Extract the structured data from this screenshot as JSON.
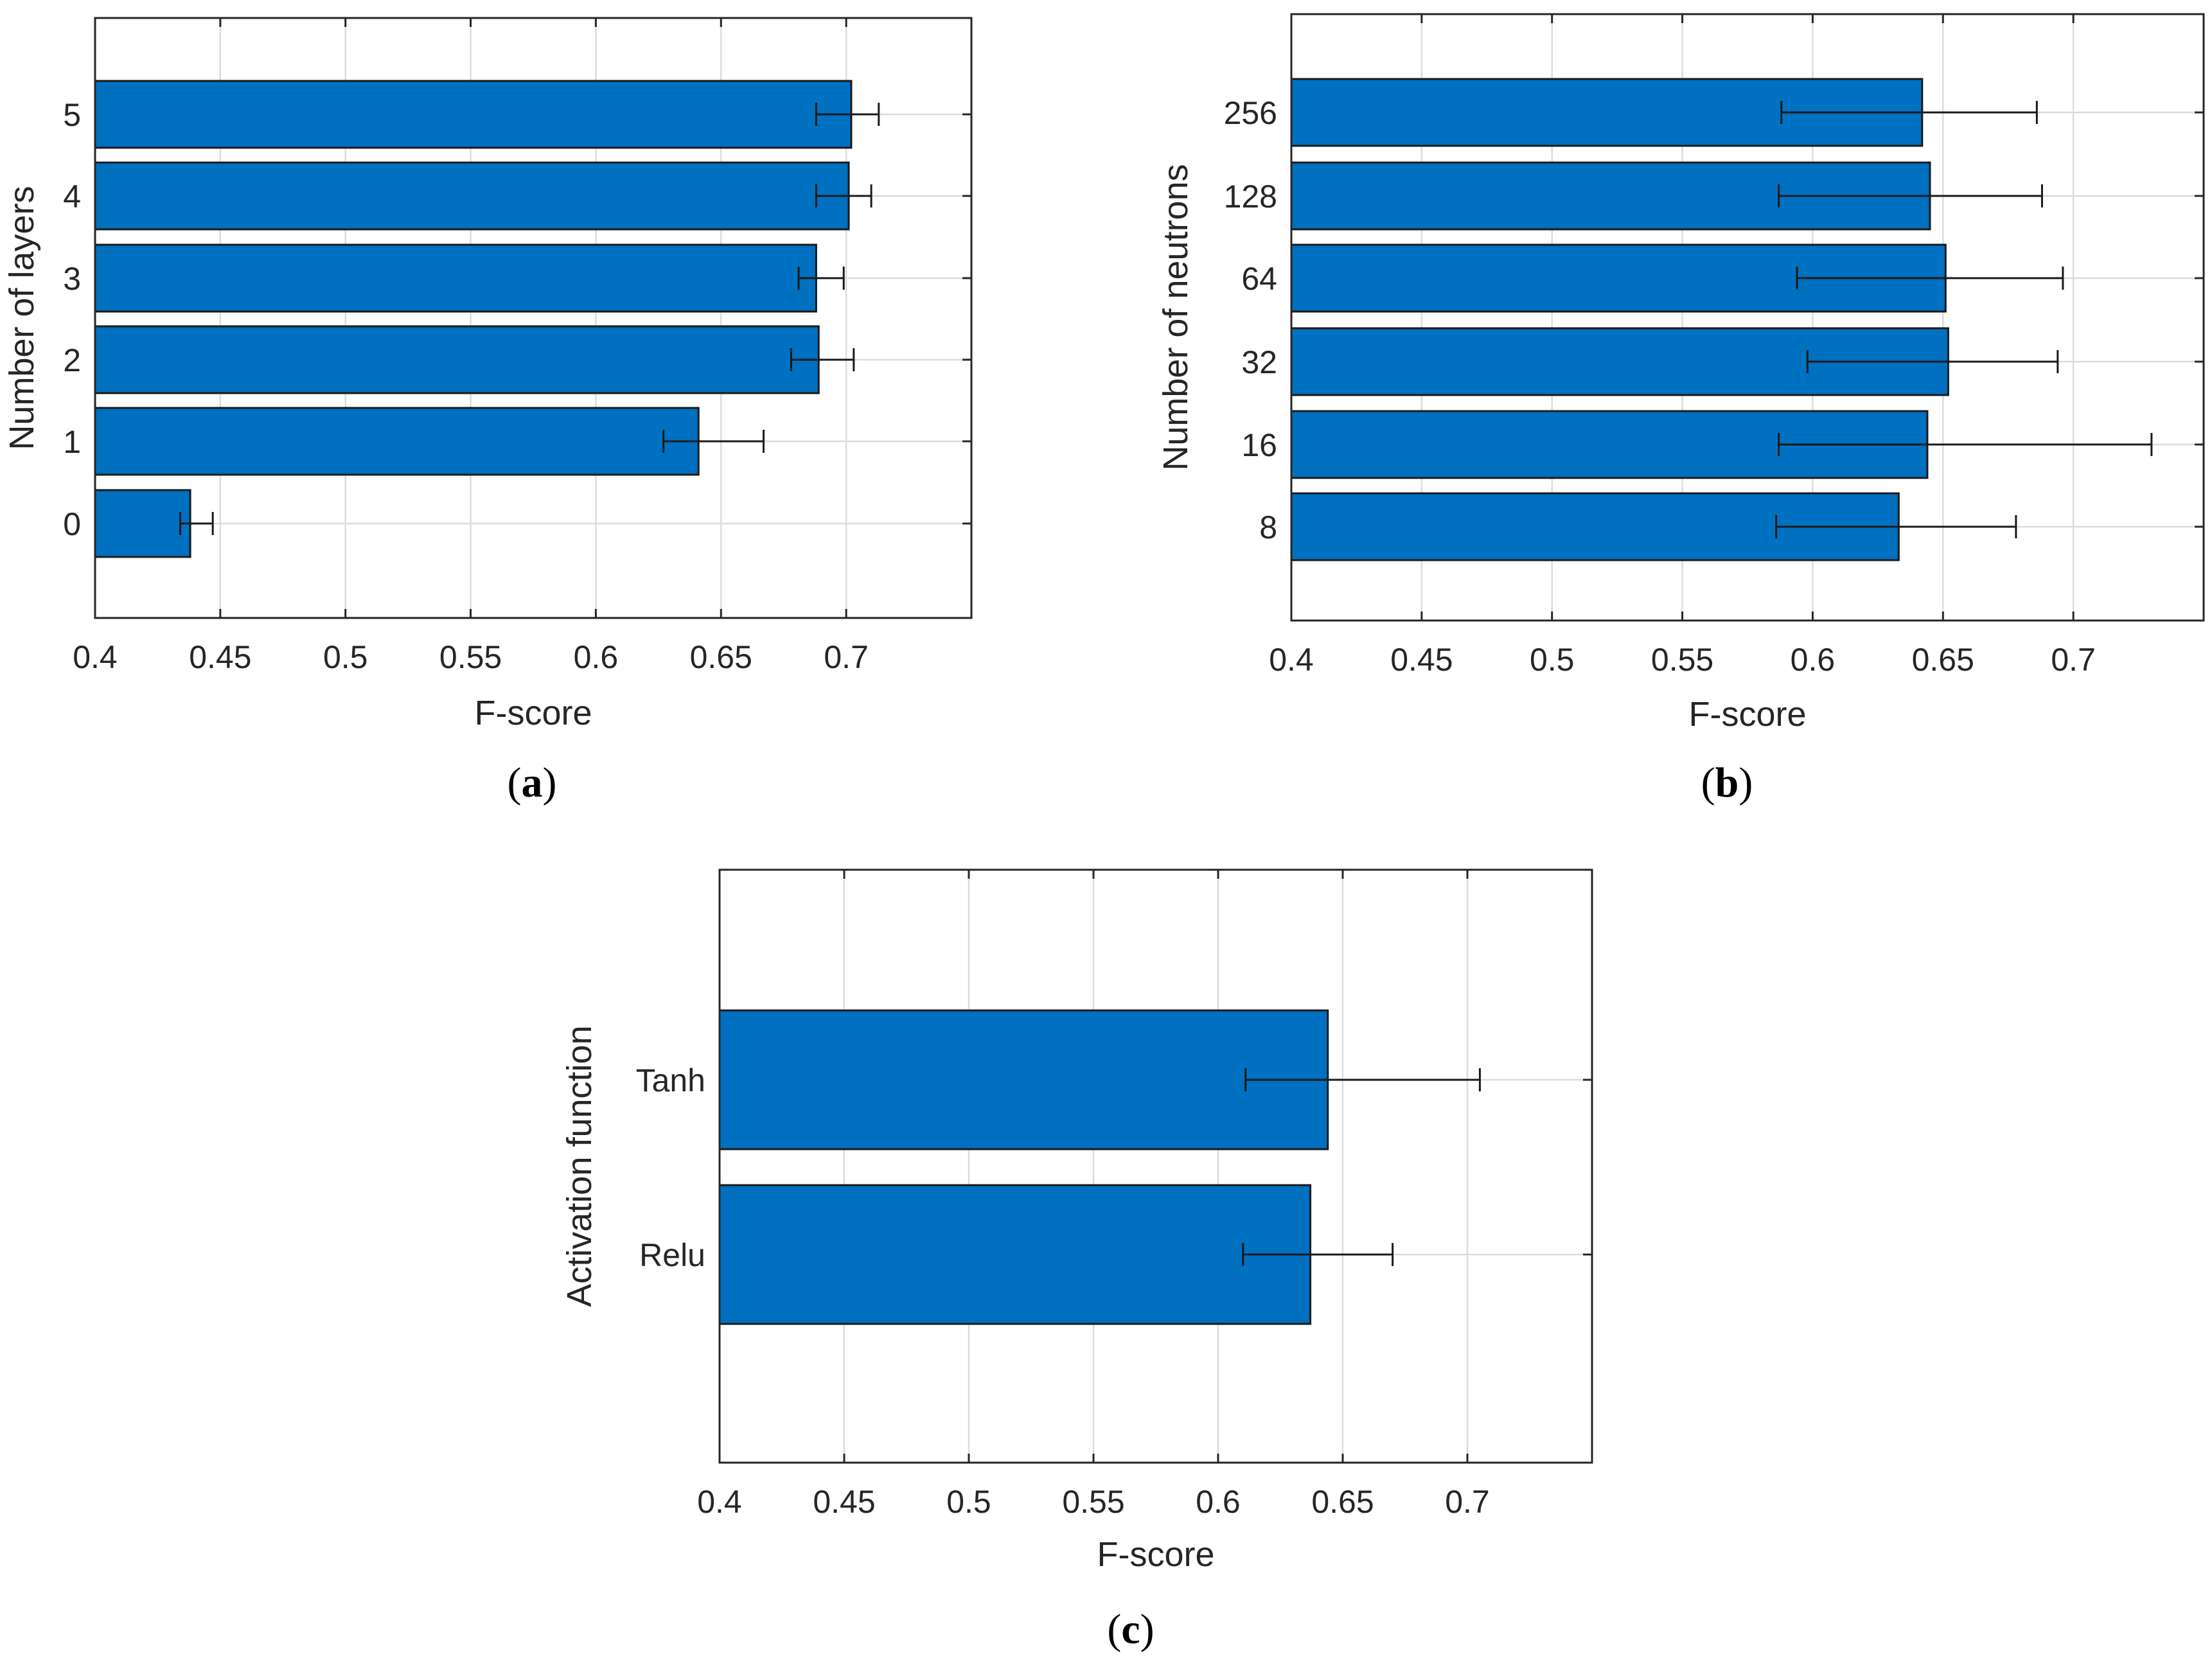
{
  "chart_data": [
    {
      "id": "a",
      "type": "bar",
      "orientation": "horizontal",
      "categories": [
        "0",
        "1",
        "2",
        "3",
        "4",
        "5"
      ],
      "values": [
        0.438,
        0.641,
        0.689,
        0.688,
        0.701,
        0.702
      ],
      "errors": [
        [
          0.434,
          0.447
        ],
        [
          0.627,
          0.667
        ],
        [
          0.678,
          0.703
        ],
        [
          0.681,
          0.699
        ],
        [
          0.688,
          0.71
        ],
        [
          0.688,
          0.713
        ]
      ],
      "xlabel": "F-score",
      "ylabel": "Number of layers",
      "xlim": [
        0.4,
        0.75
      ],
      "xticks": [
        "0.4",
        "0.45",
        "0.5",
        "0.55",
        "0.6",
        "0.65",
        "0.7"
      ],
      "grid": true,
      "color": "#0070c0",
      "caption_label": "a"
    },
    {
      "id": "b",
      "type": "bar",
      "orientation": "horizontal",
      "categories": [
        "8",
        "16",
        "32",
        "64",
        "128",
        "256"
      ],
      "values": [
        0.633,
        0.644,
        0.652,
        0.651,
        0.645,
        0.642
      ],
      "errors": [
        [
          0.586,
          0.678
        ],
        [
          0.587,
          0.73
        ],
        [
          0.598,
          0.694
        ],
        [
          0.594,
          0.696
        ],
        [
          0.587,
          0.688
        ],
        [
          0.588,
          0.686
        ]
      ],
      "xlabel": "F-score",
      "ylabel": "Number of neutrons",
      "xlim": [
        0.4,
        0.75
      ],
      "xticks": [
        "0.4",
        "0.45",
        "0.5",
        "0.55",
        "0.6",
        "0.65",
        "0.7"
      ],
      "grid": true,
      "color": "#0070c0",
      "caption_label": "b"
    },
    {
      "id": "c",
      "type": "bar",
      "orientation": "horizontal",
      "categories": [
        "Relu",
        "Tanh"
      ],
      "values": [
        0.637,
        0.644
      ],
      "errors": [
        [
          0.61,
          0.67
        ],
        [
          0.611,
          0.705
        ]
      ],
      "xlabel": "F-score",
      "ylabel": "Activation function",
      "xlim": [
        0.4,
        0.75
      ],
      "xticks": [
        "0.4",
        "0.45",
        "0.5",
        "0.55",
        "0.6",
        "0.65",
        "0.7"
      ],
      "grid": true,
      "color": "#0070c0",
      "caption_label": "c"
    }
  ]
}
